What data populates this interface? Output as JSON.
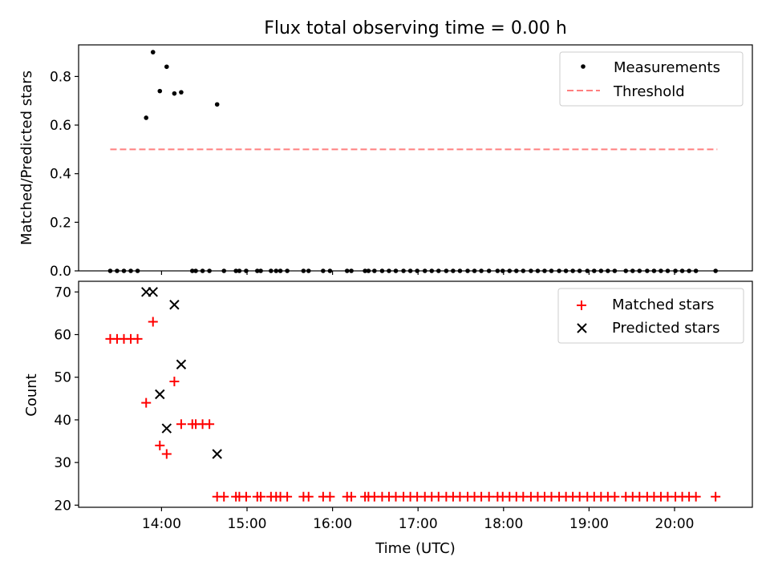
{
  "chart_data": [
    {
      "type": "scatter",
      "title": "Flux total observing time = 0.00 h",
      "ylabel": "Matched/Predicted stars",
      "xlabel": "",
      "ylim": [
        0,
        0.93
      ],
      "xlim_hours": [
        13.03,
        20.91
      ],
      "yticks": [
        0.0,
        0.2,
        0.4,
        0.6,
        0.8
      ],
      "ytick_labels": [
        "0.0",
        "0.2",
        "0.4",
        "0.6",
        "0.8"
      ],
      "legend": [
        "Measurements",
        "Threshold"
      ],
      "legend_position": "top-right",
      "threshold": {
        "name": "Threshold",
        "value": 0.5,
        "x_start": 13.4,
        "x_end": 20.5,
        "color": "#ff7f7f"
      },
      "series": [
        {
          "name": "Measurements",
          "color": "#000000",
          "points": [
            [
              13.4,
              0
            ],
            [
              13.48,
              0
            ],
            [
              13.56,
              0
            ],
            [
              13.64,
              0
            ],
            [
              13.72,
              0
            ],
            [
              13.82,
              0.63
            ],
            [
              13.9,
              0.9
            ],
            [
              13.98,
              0.74
            ],
            [
              14.06,
              0.84
            ],
            [
              14.15,
              0.73
            ],
            [
              14.23,
              0.735
            ],
            [
              14.36,
              0
            ],
            [
              14.4,
              0
            ],
            [
              14.48,
              0
            ],
            [
              14.56,
              0
            ],
            [
              14.65,
              0.685
            ],
            [
              14.73,
              0
            ],
            [
              14.87,
              0
            ],
            [
              14.91,
              0
            ],
            [
              14.99,
              0
            ],
            [
              15.12,
              0
            ],
            [
              15.16,
              0
            ],
            [
              15.28,
              0
            ],
            [
              15.34,
              0
            ],
            [
              15.39,
              0
            ],
            [
              15.47,
              0
            ],
            [
              15.66,
              0
            ],
            [
              15.72,
              0
            ],
            [
              15.89,
              0
            ],
            [
              15.97,
              0
            ],
            [
              16.17,
              0
            ],
            [
              16.22,
              0
            ],
            [
              16.38,
              0
            ],
            [
              16.42,
              0
            ],
            [
              16.49,
              0
            ],
            [
              16.58,
              0
            ],
            [
              16.66,
              0
            ],
            [
              16.74,
              0
            ],
            [
              16.83,
              0
            ],
            [
              16.91,
              0
            ],
            [
              16.99,
              0
            ],
            [
              17.08,
              0
            ],
            [
              17.16,
              0
            ],
            [
              17.24,
              0
            ],
            [
              17.33,
              0
            ],
            [
              17.41,
              0
            ],
            [
              17.49,
              0
            ],
            [
              17.58,
              0
            ],
            [
              17.66,
              0
            ],
            [
              17.74,
              0
            ],
            [
              17.83,
              0
            ],
            [
              17.93,
              0
            ],
            [
              17.99,
              0
            ],
            [
              18.07,
              0
            ],
            [
              18.15,
              0
            ],
            [
              18.23,
              0
            ],
            [
              18.32,
              0
            ],
            [
              18.4,
              0
            ],
            [
              18.48,
              0
            ],
            [
              18.56,
              0
            ],
            [
              18.65,
              0
            ],
            [
              18.73,
              0
            ],
            [
              18.81,
              0
            ],
            [
              18.89,
              0
            ],
            [
              18.98,
              0
            ],
            [
              19.06,
              0
            ],
            [
              19.14,
              0
            ],
            [
              19.22,
              0
            ],
            [
              19.3,
              0
            ],
            [
              19.43,
              0
            ],
            [
              19.51,
              0
            ],
            [
              19.59,
              0
            ],
            [
              19.68,
              0
            ],
            [
              19.76,
              0
            ],
            [
              19.84,
              0
            ],
            [
              19.92,
              0
            ],
            [
              20.01,
              0
            ],
            [
              20.09,
              0
            ],
            [
              20.17,
              0
            ],
            [
              20.25,
              0
            ],
            [
              20.48,
              0
            ]
          ]
        }
      ]
    },
    {
      "type": "scatter",
      "title": "",
      "ylabel": "Count",
      "xlabel": "Time (UTC)",
      "ylim": [
        19.5,
        72.5
      ],
      "xlim_hours": [
        13.03,
        20.91
      ],
      "yticks": [
        20,
        30,
        40,
        50,
        60,
        70
      ],
      "ytick_labels": [
        "20",
        "30",
        "40",
        "50",
        "60",
        "70"
      ],
      "xticks": [
        14,
        15,
        16,
        17,
        18,
        19,
        20
      ],
      "xtick_labels": [
        "14:00",
        "15:00",
        "16:00",
        "17:00",
        "18:00",
        "19:00",
        "20:00"
      ],
      "legend": [
        "Matched stars",
        "Predicted stars"
      ],
      "legend_position": "top-right",
      "series": [
        {
          "name": "Matched stars",
          "marker": "plus",
          "color": "#ff0000",
          "points": [
            [
              13.4,
              59
            ],
            [
              13.48,
              59
            ],
            [
              13.56,
              59
            ],
            [
              13.64,
              59
            ],
            [
              13.72,
              59
            ],
            [
              13.82,
              44
            ],
            [
              13.9,
              63
            ],
            [
              13.98,
              34
            ],
            [
              14.06,
              32
            ],
            [
              14.15,
              49
            ],
            [
              14.23,
              39
            ],
            [
              14.36,
              39
            ],
            [
              14.4,
              39
            ],
            [
              14.48,
              39
            ],
            [
              14.56,
              39
            ],
            [
              14.65,
              22
            ],
            [
              14.73,
              22
            ],
            [
              14.87,
              22
            ],
            [
              14.91,
              22
            ],
            [
              14.99,
              22
            ],
            [
              15.12,
              22
            ],
            [
              15.16,
              22
            ],
            [
              15.28,
              22
            ],
            [
              15.34,
              22
            ],
            [
              15.39,
              22
            ],
            [
              15.47,
              22
            ],
            [
              15.66,
              22
            ],
            [
              15.72,
              22
            ],
            [
              15.89,
              22
            ],
            [
              15.97,
              22
            ],
            [
              16.17,
              22
            ],
            [
              16.22,
              22
            ],
            [
              16.38,
              22
            ],
            [
              16.42,
              22
            ],
            [
              16.49,
              22
            ],
            [
              16.58,
              22
            ],
            [
              16.66,
              22
            ],
            [
              16.74,
              22
            ],
            [
              16.83,
              22
            ],
            [
              16.91,
              22
            ],
            [
              16.99,
              22
            ],
            [
              17.08,
              22
            ],
            [
              17.16,
              22
            ],
            [
              17.24,
              22
            ],
            [
              17.33,
              22
            ],
            [
              17.41,
              22
            ],
            [
              17.49,
              22
            ],
            [
              17.58,
              22
            ],
            [
              17.66,
              22
            ],
            [
              17.74,
              22
            ],
            [
              17.83,
              22
            ],
            [
              17.93,
              22
            ],
            [
              17.99,
              22
            ],
            [
              18.07,
              22
            ],
            [
              18.15,
              22
            ],
            [
              18.23,
              22
            ],
            [
              18.32,
              22
            ],
            [
              18.4,
              22
            ],
            [
              18.48,
              22
            ],
            [
              18.56,
              22
            ],
            [
              18.65,
              22
            ],
            [
              18.73,
              22
            ],
            [
              18.81,
              22
            ],
            [
              18.89,
              22
            ],
            [
              18.98,
              22
            ],
            [
              19.06,
              22
            ],
            [
              19.14,
              22
            ],
            [
              19.22,
              22
            ],
            [
              19.3,
              22
            ],
            [
              19.43,
              22
            ],
            [
              19.51,
              22
            ],
            [
              19.59,
              22
            ],
            [
              19.68,
              22
            ],
            [
              19.76,
              22
            ],
            [
              19.84,
              22
            ],
            [
              19.92,
              22
            ],
            [
              20.01,
              22
            ],
            [
              20.09,
              22
            ],
            [
              20.17,
              22
            ],
            [
              20.25,
              22
            ],
            [
              20.48,
              22
            ]
          ]
        },
        {
          "name": "Predicted stars",
          "marker": "x",
          "color": "#000000",
          "points": [
            [
              13.82,
              70
            ],
            [
              13.9,
              70
            ],
            [
              13.98,
              46
            ],
            [
              14.06,
              38
            ],
            [
              14.15,
              67
            ],
            [
              14.23,
              53
            ],
            [
              14.65,
              32
            ]
          ]
        }
      ]
    }
  ]
}
